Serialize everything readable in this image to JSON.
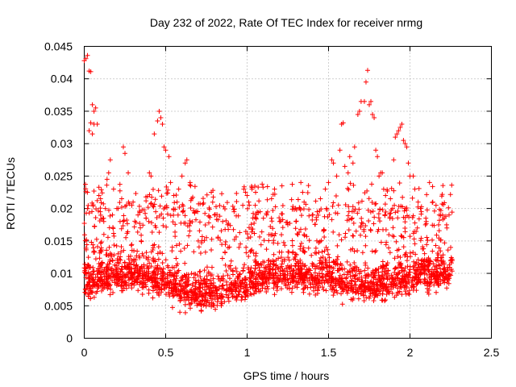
{
  "chart_data": {
    "type": "scatter",
    "title": "Day 232 of 2022, Rate Of TEC Index for receiver nrmg",
    "xlabel": "GPS time / hours",
    "ylabel": "ROTI / TECUs",
    "xlim": [
      0,
      2.5
    ],
    "ylim": [
      0,
      0.045
    ],
    "x_ticks": [
      0,
      0.5,
      1,
      1.5,
      2,
      2.5
    ],
    "x_tick_labels": [
      "0",
      "0.5",
      "1",
      "1.5",
      "2",
      "2.5"
    ],
    "y_ticks": [
      0,
      0.005,
      0.01,
      0.015,
      0.02,
      0.025,
      0.03,
      0.035,
      0.04,
      0.045
    ],
    "y_tick_labels": [
      "0",
      "0.005",
      "0.01",
      "0.015",
      "0.02",
      "0.025",
      "0.03",
      "0.035",
      "0.04",
      "0.045"
    ],
    "grid": true,
    "marker": "+",
    "color": "#ff0000",
    "series": [
      {
        "name": "nrmg",
        "x_range": [
          0.0,
          2.26
        ],
        "point_count_estimate": 2700,
        "points": [
          [
            0.0,
            0.0428
          ],
          [
            0.01,
            0.0431
          ],
          [
            0.02,
            0.0436
          ],
          [
            0.03,
            0.0412
          ],
          [
            0.04,
            0.0411
          ],
          [
            0.01,
            0.0226
          ],
          [
            0.02,
            0.0225
          ],
          [
            0.03,
            0.032
          ],
          [
            0.04,
            0.0332
          ],
          [
            0.05,
            0.0315
          ],
          [
            0.05,
            0.036
          ],
          [
            0.06,
            0.035
          ],
          [
            0.07,
            0.0355
          ],
          [
            0.08,
            0.033
          ],
          [
            0.06,
            0.033
          ],
          [
            0.09,
            0.022
          ],
          [
            0.1,
            0.0215
          ],
          [
            0.12,
            0.018
          ],
          [
            0.13,
            0.02
          ],
          [
            0.14,
            0.0245
          ],
          [
            0.15,
            0.0255
          ],
          [
            0.16,
            0.0275
          ],
          [
            0.18,
            0.023
          ],
          [
            0.2,
            0.02
          ],
          [
            0.22,
            0.018
          ],
          [
            0.23,
            0.0215
          ],
          [
            0.24,
            0.0295
          ],
          [
            0.25,
            0.0285
          ],
          [
            0.27,
            0.0255
          ],
          [
            0.3,
            0.021
          ],
          [
            0.33,
            0.019
          ],
          [
            0.35,
            0.015
          ],
          [
            0.38,
            0.0185
          ],
          [
            0.4,
            0.0255
          ],
          [
            0.41,
            0.025
          ],
          [
            0.43,
            0.0315
          ],
          [
            0.45,
            0.0335
          ],
          [
            0.46,
            0.035
          ],
          [
            0.47,
            0.034
          ],
          [
            0.48,
            0.033
          ],
          [
            0.49,
            0.0295
          ],
          [
            0.5,
            0.029
          ],
          [
            0.52,
            0.028
          ],
          [
            0.53,
            0.024
          ],
          [
            0.55,
            0.022
          ],
          [
            0.57,
            0.021
          ],
          [
            0.58,
            0.023
          ],
          [
            0.6,
            0.025
          ],
          [
            0.62,
            0.027
          ],
          [
            0.63,
            0.0275
          ],
          [
            0.65,
            0.024
          ],
          [
            0.66,
            0.0215
          ],
          [
            0.7,
            0.015
          ],
          [
            0.75,
            0.0155
          ],
          [
            0.78,
            0.0225
          ],
          [
            0.79,
            0.0228
          ],
          [
            0.8,
            0.019
          ],
          [
            0.85,
            0.018
          ],
          [
            0.88,
            0.0175
          ],
          [
            0.92,
            0.0195
          ],
          [
            0.95,
            0.014
          ],
          [
            0.98,
            0.023
          ],
          [
            0.99,
            0.0225
          ],
          [
            1.0,
            0.022
          ],
          [
            1.01,
            0.021
          ],
          [
            1.03,
            0.023
          ],
          [
            1.05,
            0.0205
          ],
          [
            1.08,
            0.0195
          ],
          [
            1.1,
            0.0185
          ],
          [
            1.12,
            0.019
          ],
          [
            1.15,
            0.0215
          ],
          [
            1.17,
            0.0222
          ],
          [
            1.2,
            0.018
          ],
          [
            1.25,
            0.0175
          ],
          [
            1.3,
            0.018
          ],
          [
            1.33,
            0.024
          ],
          [
            1.35,
            0.021
          ],
          [
            1.4,
            0.019
          ],
          [
            1.43,
            0.0195
          ],
          [
            1.45,
            0.0215
          ],
          [
            1.48,
            0.023
          ],
          [
            1.5,
            0.024
          ],
          [
            1.52,
            0.0275
          ],
          [
            1.53,
            0.027
          ],
          [
            1.55,
            0.025
          ],
          [
            1.57,
            0.029
          ],
          [
            1.58,
            0.033
          ],
          [
            1.59,
            0.0332
          ],
          [
            1.6,
            0.0265
          ],
          [
            1.62,
            0.0255
          ],
          [
            1.63,
            0.028
          ],
          [
            1.65,
            0.027
          ],
          [
            1.66,
            0.0295
          ],
          [
            1.68,
            0.0345
          ],
          [
            1.69,
            0.035
          ],
          [
            1.7,
            0.0365
          ],
          [
            1.72,
            0.0365
          ],
          [
            1.73,
            0.0395
          ],
          [
            1.74,
            0.0413
          ],
          [
            1.75,
            0.036
          ],
          [
            1.76,
            0.0365
          ],
          [
            1.77,
            0.0345
          ],
          [
            1.78,
            0.034
          ],
          [
            1.79,
            0.029
          ],
          [
            1.8,
            0.028
          ],
          [
            1.81,
            0.025
          ],
          [
            1.82,
            0.0255
          ],
          [
            1.83,
            0.0255
          ],
          [
            1.85,
            0.022
          ],
          [
            1.88,
            0.0215
          ],
          [
            1.9,
            0.0275
          ],
          [
            1.91,
            0.031
          ],
          [
            1.92,
            0.0315
          ],
          [
            1.93,
            0.032
          ],
          [
            1.94,
            0.0325
          ],
          [
            1.95,
            0.033
          ],
          [
            1.96,
            0.0305
          ],
          [
            1.97,
            0.03
          ],
          [
            1.98,
            0.0295
          ],
          [
            1.99,
            0.027
          ],
          [
            2.0,
            0.025
          ],
          [
            2.02,
            0.025
          ],
          [
            2.03,
            0.023
          ],
          [
            2.05,
            0.021
          ],
          [
            2.07,
            0.0195
          ],
          [
            2.1,
            0.018
          ],
          [
            2.12,
            0.024
          ],
          [
            2.14,
            0.021
          ],
          [
            2.16,
            0.0205
          ],
          [
            2.18,
            0.019
          ],
          [
            2.2,
            0.019
          ],
          [
            2.22,
            0.0188
          ],
          [
            2.24,
            0.019
          ],
          [
            2.25,
            0.014
          ],
          [
            2.26,
            0.012
          ]
        ]
      }
    ]
  }
}
